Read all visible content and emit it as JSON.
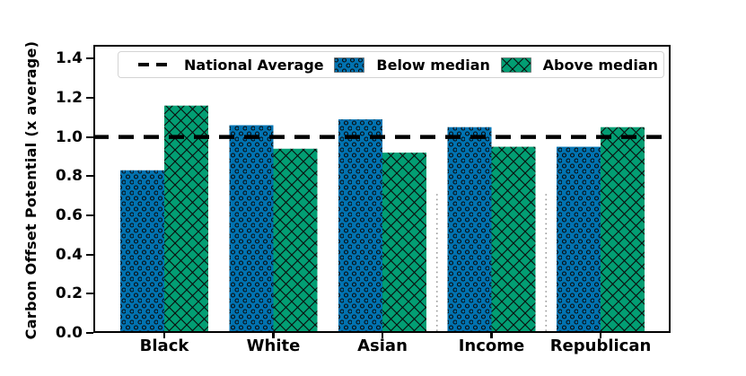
{
  "chart_data": {
    "type": "bar",
    "title": "",
    "xlabel": "",
    "ylabel": "Carbon Offset Potential (x average)",
    "categories": [
      "Black",
      "White",
      "Asian",
      "Income",
      "Republican"
    ],
    "series": [
      {
        "name": "Below median",
        "color": "#0173b2",
        "hatch": "circles",
        "values": [
          0.83,
          1.06,
          1.09,
          1.05,
          0.95
        ]
      },
      {
        "name": "Above median",
        "color": "#029e73",
        "hatch": "crosshatch",
        "values": [
          1.16,
          0.94,
          0.92,
          0.95,
          1.05
        ]
      }
    ],
    "reference_line": {
      "label": "National Average",
      "value": 1.0,
      "style": "dashed",
      "color": "#000000"
    },
    "separators": [
      {
        "after_category": "Asian",
        "top_value": 0.72,
        "style": "dotted",
        "color": "#9a9a9a"
      },
      {
        "after_category": "Income",
        "top_value": 0.72,
        "style": "dotted",
        "color": "#9a9a9a"
      }
    ],
    "ytick_labels": [
      "0.0",
      "0.2",
      "0.4",
      "0.6",
      "0.8",
      "1.0",
      "1.2",
      "1.4"
    ],
    "yticks": [
      0.0,
      0.2,
      0.4,
      0.6,
      0.8,
      1.0,
      1.2,
      1.4
    ],
    "ylim": [
      0,
      1.47
    ],
    "grid": false,
    "legend_position": "upper center inside plot, horizontal",
    "hatch_color": "#0a0a0a",
    "spine_color": "#000000"
  }
}
